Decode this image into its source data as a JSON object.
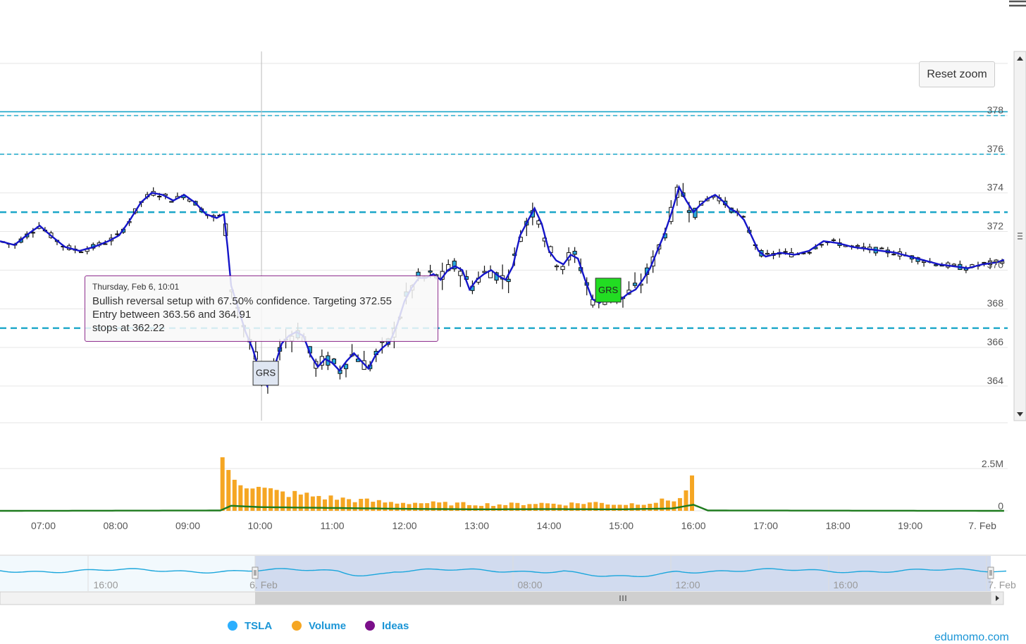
{
  "reset_zoom_label": "Reset zoom",
  "tooltip": {
    "header": "Thursday, Feb 6, 10:01",
    "lines": [
      "Bullish reversal setup with 67.50% confidence. Targeting 372.55",
      "Entry between 363.56 and 364.91",
      "stops at 362.22"
    ]
  },
  "legend": [
    {
      "name": "TSLA",
      "color": "#2caffe"
    },
    {
      "name": "Volume",
      "color": "#f5a623"
    },
    {
      "name": "Ideas",
      "color": "#7b0f8a"
    }
  ],
  "credits": "edumomo.com",
  "colors": {
    "candle_up": "#ffffff",
    "candle_down": "#2aa7dc",
    "ma_line": "#1515c9",
    "level_line": "#1aa6c8",
    "volume_bar": "#f5a623",
    "volume_ma": "#1e7b1e",
    "marker_highlight": "#22dd22",
    "marker_default": "#dfe6f2",
    "navigator_line": "#1aa6dc",
    "navigator_mask": "#c9d5ec"
  },
  "chart_data": {
    "type": "candlestick",
    "series_name": "TSLA",
    "x_axis": {
      "ticks": [
        "07:00",
        "08:00",
        "09:00",
        "10:00",
        "11:00",
        "12:00",
        "13:00",
        "14:00",
        "15:00",
        "16:00",
        "17:00",
        "18:00",
        "19:00",
        "7. Feb"
      ],
      "tick_hours": [
        7,
        8,
        9,
        10,
        11,
        12,
        13,
        14,
        15,
        16,
        17,
        18,
        19,
        20
      ],
      "range_hours": [
        6.4,
        20.35
      ]
    },
    "y_axis": {
      "ticks": [
        364,
        366,
        368,
        370,
        372,
        374,
        376,
        378
      ],
      "range": [
        362.1,
        380.7
      ]
    },
    "volume_axis": {
      "ticks": [
        "0",
        "2.5M"
      ],
      "tick_values": [
        0,
        2500000
      ],
      "max": 2500000
    },
    "levels": [
      {
        "value": 378.2,
        "style": "solid"
      },
      {
        "value": 378.0,
        "style": "dashed"
      },
      {
        "value": 376.0,
        "style": "dashed"
      },
      {
        "value": 373.0,
        "style": "dashed-bold"
      },
      {
        "value": 367.0,
        "style": "dashed-bold"
      }
    ],
    "price_path": [
      [
        6.4,
        371.5
      ],
      [
        6.6,
        371.3
      ],
      [
        6.8,
        371.9
      ],
      [
        6.95,
        372.3
      ],
      [
        7.1,
        371.8
      ],
      [
        7.3,
        371.2
      ],
      [
        7.5,
        371.0
      ],
      [
        7.7,
        371.2
      ],
      [
        7.9,
        371.5
      ],
      [
        8.05,
        371.8
      ],
      [
        8.2,
        372.6
      ],
      [
        8.35,
        373.5
      ],
      [
        8.5,
        374.0
      ],
      [
        8.65,
        373.9
      ],
      [
        8.8,
        373.6
      ],
      [
        8.95,
        373.9
      ],
      [
        9.1,
        373.5
      ],
      [
        9.25,
        372.9
      ],
      [
        9.4,
        372.7
      ],
      [
        9.5,
        372.9
      ],
      [
        9.55,
        371.2
      ],
      [
        9.6,
        369.2
      ],
      [
        9.7,
        368.0
      ],
      [
        9.8,
        366.8
      ],
      [
        9.9,
        365.9
      ],
      [
        10.0,
        364.7
      ],
      [
        10.1,
        364.0
      ],
      [
        10.2,
        365.0
      ],
      [
        10.3,
        366.2
      ],
      [
        10.4,
        366.6
      ],
      [
        10.5,
        366.8
      ],
      [
        10.6,
        366.6
      ],
      [
        10.7,
        365.6
      ],
      [
        10.8,
        365.0
      ],
      [
        10.9,
        365.4
      ],
      [
        11.0,
        365.2
      ],
      [
        11.1,
        364.8
      ],
      [
        11.2,
        365.3
      ],
      [
        11.3,
        365.7
      ],
      [
        11.4,
        365.3
      ],
      [
        11.5,
        364.9
      ],
      [
        11.6,
        365.6
      ],
      [
        11.7,
        366.0
      ],
      [
        11.8,
        366.3
      ],
      [
        11.9,
        367.2
      ],
      [
        12.0,
        368.4
      ],
      [
        12.1,
        369.1
      ],
      [
        12.2,
        369.6
      ],
      [
        12.3,
        369.6
      ],
      [
        12.4,
        369.8
      ],
      [
        12.5,
        369.5
      ],
      [
        12.6,
        370.0
      ],
      [
        12.7,
        370.2
      ],
      [
        12.8,
        370.0
      ],
      [
        12.9,
        369.0
      ],
      [
        13.0,
        369.5
      ],
      [
        13.1,
        369.8
      ],
      [
        13.2,
        370.0
      ],
      [
        13.3,
        369.7
      ],
      [
        13.4,
        369.5
      ],
      [
        13.5,
        370.2
      ],
      [
        13.6,
        371.8
      ],
      [
        13.7,
        372.5
      ],
      [
        13.8,
        373.2
      ],
      [
        13.9,
        372.4
      ],
      [
        14.0,
        371.0
      ],
      [
        14.1,
        370.5
      ],
      [
        14.2,
        370.3
      ],
      [
        14.3,
        370.8
      ],
      [
        14.4,
        370.6
      ],
      [
        14.5,
        369.5
      ],
      [
        14.6,
        368.5
      ],
      [
        14.7,
        368.3
      ],
      [
        14.8,
        368.6
      ],
      [
        14.9,
        368.8
      ],
      [
        15.0,
        368.5
      ],
      [
        15.1,
        368.8
      ],
      [
        15.2,
        369.0
      ],
      [
        15.3,
        369.5
      ],
      [
        15.4,
        370.1
      ],
      [
        15.5,
        371.0
      ],
      [
        15.6,
        371.9
      ],
      [
        15.7,
        373.0
      ],
      [
        15.8,
        374.3
      ],
      [
        15.9,
        373.6
      ],
      [
        16.0,
        373.0
      ],
      [
        16.1,
        373.4
      ],
      [
        16.2,
        373.7
      ],
      [
        16.3,
        373.9
      ],
      [
        16.4,
        373.6
      ],
      [
        16.5,
        373.2
      ],
      [
        16.6,
        373.0
      ],
      [
        16.7,
        372.6
      ],
      [
        16.8,
        371.8
      ],
      [
        16.9,
        371.0
      ],
      [
        17.0,
        370.7
      ],
      [
        17.2,
        370.9
      ],
      [
        17.4,
        370.8
      ],
      [
        17.6,
        371.0
      ],
      [
        17.8,
        371.5
      ],
      [
        18.0,
        371.4
      ],
      [
        18.2,
        371.2
      ],
      [
        18.4,
        371.1
      ],
      [
        18.6,
        371.0
      ],
      [
        18.8,
        370.9
      ],
      [
        19.0,
        370.7
      ],
      [
        19.2,
        370.5
      ],
      [
        19.4,
        370.3
      ],
      [
        19.6,
        370.2
      ],
      [
        19.8,
        370.1
      ],
      [
        20.0,
        370.3
      ],
      [
        20.2,
        370.4
      ],
      [
        20.35,
        370.6
      ]
    ],
    "volume_profile": [
      [
        9.48,
        2800000
      ],
      [
        9.6,
        2300000
      ],
      [
        9.8,
        1750000
      ],
      [
        10.0,
        1350000
      ],
      [
        10.3,
        1100000
      ],
      [
        10.6,
        1000000
      ],
      [
        11.0,
        800000
      ],
      [
        11.4,
        650000
      ],
      [
        11.8,
        520000
      ],
      [
        12.2,
        500000
      ],
      [
        12.6,
        450000
      ],
      [
        13.0,
        420000
      ],
      [
        13.4,
        400000
      ],
      [
        13.8,
        480000
      ],
      [
        14.2,
        430000
      ],
      [
        14.6,
        520000
      ],
      [
        15.0,
        400000
      ],
      [
        15.4,
        520000
      ],
      [
        15.8,
        750000
      ],
      [
        15.9,
        1150000
      ],
      [
        15.98,
        2500000
      ]
    ],
    "ideas": [
      {
        "x": 10.02,
        "price": 364.7,
        "label": "GRS",
        "highlighted": false
      },
      {
        "x": 14.82,
        "price": 369.0,
        "label": "GRS",
        "highlighted": true
      }
    ],
    "crosshair_x": 10.02,
    "navigator": {
      "ticks": [
        "16:00",
        "6. Feb",
        "08:00",
        "12:00",
        "16:00",
        "7. Feb"
      ]
    }
  }
}
